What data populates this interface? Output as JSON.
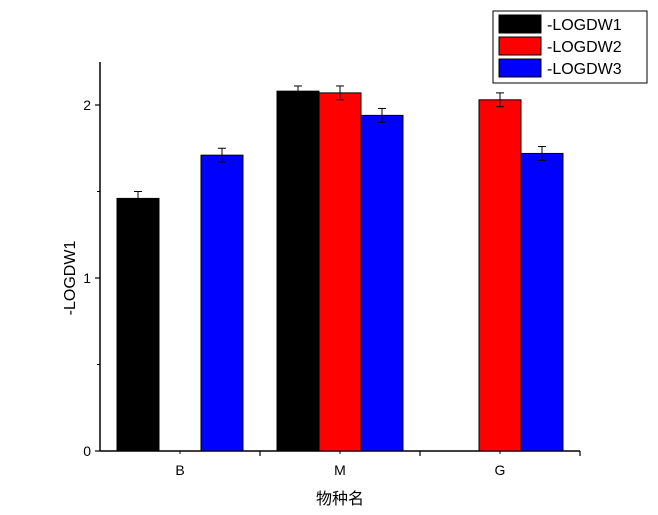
{
  "chart_data": {
    "type": "bar",
    "categories": [
      "B",
      "M",
      "G"
    ],
    "series": [
      {
        "name": "-LOGDW1",
        "color": "#000000",
        "values": [
          1.46,
          2.08,
          null
        ],
        "errors": [
          0.04,
          0.03,
          null
        ]
      },
      {
        "name": "-LOGDW2",
        "color": "#ff0000",
        "values": [
          null,
          2.07,
          2.03
        ],
        "errors": [
          null,
          0.04,
          0.04
        ]
      },
      {
        "name": "-LOGDW3",
        "color": "#0000ff",
        "values": [
          1.71,
          1.94,
          1.72
        ],
        "errors": [
          0.04,
          0.04,
          0.04
        ]
      }
    ],
    "xlabel": "物种名",
    "ylabel": "-LOGDW1",
    "ylim": [
      0,
      2.25
    ],
    "yticks": [
      0,
      1,
      2
    ],
    "legend_position": "top-right",
    "grid": false
  }
}
